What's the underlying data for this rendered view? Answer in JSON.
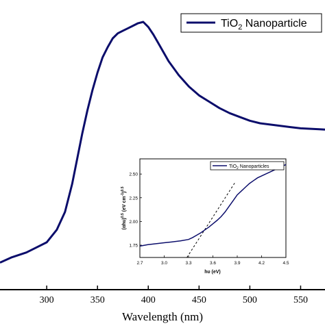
{
  "chart_data": [
    {
      "type": "line",
      "title": "",
      "xlabel": "Wavelength (nm)",
      "ylabel": "",
      "xlim": [
        254,
        574
      ],
      "ylim": [
        0,
        1.0
      ],
      "xticks": [
        300,
        350,
        400,
        450,
        500,
        550
      ],
      "xtick_labels": [
        "300",
        "350",
        "400",
        "450",
        "500",
        "550"
      ],
      "legend": {
        "position": "top-right",
        "entries": [
          {
            "name_main": "TiO",
            "name_sub": "2",
            "name_tail": " Nanoparticle"
          }
        ]
      },
      "color": "#0b0d6b",
      "series": [
        {
          "name": "TiO2 Nanoparticle",
          "x": [
            254,
            265,
            280,
            290,
            300,
            310,
            318,
            325,
            330,
            335,
            340,
            345,
            350,
            355,
            360,
            365,
            370,
            375,
            380,
            385,
            390,
            395,
            400,
            405,
            410,
            415,
            420,
            430,
            440,
            450,
            460,
            470,
            480,
            490,
            500,
            510,
            520,
            530,
            540,
            550,
            560,
            570,
            574
          ],
          "y": [
            0.05,
            0.07,
            0.09,
            0.11,
            0.13,
            0.18,
            0.25,
            0.36,
            0.46,
            0.56,
            0.65,
            0.73,
            0.8,
            0.86,
            0.9,
            0.935,
            0.955,
            0.965,
            0.975,
            0.985,
            0.995,
            1.0,
            0.98,
            0.95,
            0.915,
            0.88,
            0.845,
            0.79,
            0.745,
            0.71,
            0.685,
            0.66,
            0.64,
            0.625,
            0.61,
            0.6,
            0.595,
            0.59,
            0.585,
            0.58,
            0.578,
            0.576,
            0.575
          ]
        }
      ]
    },
    {
      "type": "line",
      "title": "",
      "xlabel": "hυ (eV)",
      "ylabel_parts": [
        "(αhυ)",
        "0.5",
        "(eV cm",
        "-1",
        ")",
        "0.5"
      ],
      "xlim": [
        2.7,
        4.5
      ],
      "ylim": [
        1.62,
        2.66
      ],
      "xticks": [
        2.7,
        3.0,
        3.3,
        3.6,
        3.9,
        4.2,
        4.5
      ],
      "xtick_labels": [
        "2.7",
        "3.0",
        "3.3",
        "3.6",
        "3.9",
        "4.2",
        "4.5"
      ],
      "yticks": [
        1.75,
        2.0,
        2.25,
        2.5
      ],
      "ytick_labels": [
        "1.75",
        "2.00",
        "2.25",
        "2.50"
      ],
      "legend": {
        "position": "top-right",
        "entries": [
          {
            "name_main": "TiO",
            "name_sub": "2",
            "name_tail": " Nanoparticles"
          }
        ]
      },
      "color": "#0b0d6b",
      "series": [
        {
          "name": "TiO2 Nanoparticles",
          "x": [
            2.7,
            2.8,
            2.9,
            3.0,
            3.1,
            3.2,
            3.3,
            3.35,
            3.4,
            3.45,
            3.5,
            3.55,
            3.6,
            3.65,
            3.7,
            3.75,
            3.8,
            3.85,
            3.9,
            3.95,
            4.0,
            4.05,
            4.1,
            4.15,
            4.2,
            4.3,
            4.4,
            4.5
          ],
          "y": [
            1.74,
            1.755,
            1.765,
            1.775,
            1.785,
            1.795,
            1.81,
            1.83,
            1.855,
            1.88,
            1.91,
            1.94,
            1.975,
            2.01,
            2.05,
            2.1,
            2.16,
            2.22,
            2.28,
            2.32,
            2.36,
            2.4,
            2.43,
            2.46,
            2.48,
            2.52,
            2.56,
            2.6
          ]
        },
        {
          "name": "tangent",
          "style": "dashed",
          "x": [
            3.28,
            3.88
          ],
          "y": [
            1.62,
            2.42
          ]
        }
      ]
    }
  ]
}
